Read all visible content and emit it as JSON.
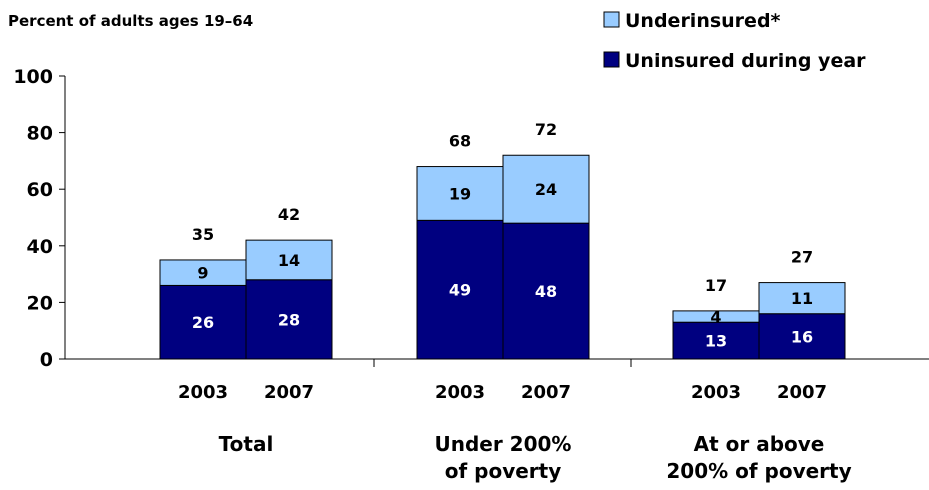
{
  "chart_data": {
    "type": "bar",
    "stacked": true,
    "title": "Percent of adults ages 19–64",
    "ylim": [
      0,
      100
    ],
    "yticks": [
      0,
      20,
      40,
      60,
      80,
      100
    ],
    "legend_position": "top-right",
    "groups": [
      {
        "label_lines": [
          "Total"
        ],
        "bars": [
          {
            "year": "2003",
            "uninsured": 26,
            "underinsured": 9,
            "total": 35
          },
          {
            "year": "2007",
            "uninsured": 28,
            "underinsured": 14,
            "total": 42
          }
        ]
      },
      {
        "label_lines": [
          "Under 200%",
          "of poverty"
        ],
        "bars": [
          {
            "year": "2003",
            "uninsured": 49,
            "underinsured": 19,
            "total": 68
          },
          {
            "year": "2007",
            "uninsured": 48,
            "underinsured": 24,
            "total": 72
          }
        ]
      },
      {
        "label_lines": [
          "At or above",
          "200% of poverty"
        ],
        "bars": [
          {
            "year": "2003",
            "uninsured": 13,
            "underinsured": 4,
            "total": 17
          },
          {
            "year": "2007",
            "uninsured": 16,
            "underinsured": 11,
            "total": 27
          }
        ]
      }
    ],
    "series": [
      {
        "key": "underinsured",
        "name": "Underinsured*",
        "color": "#99ccff",
        "label_color": "#000000"
      },
      {
        "key": "uninsured",
        "name": "Uninsured during year",
        "color": "#000080",
        "label_color": "#ffffff"
      }
    ]
  }
}
